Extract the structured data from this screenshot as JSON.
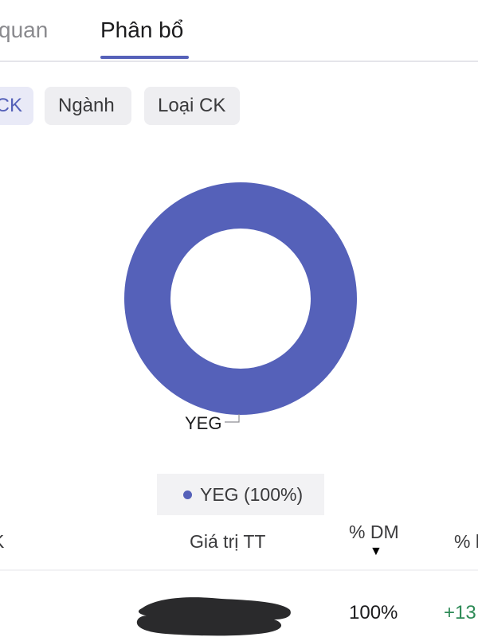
{
  "tabs": [
    {
      "label": "quan"
    },
    {
      "label": "Phân bổ",
      "active": true
    }
  ],
  "filters": [
    {
      "label": "CK",
      "selected": true
    },
    {
      "label": "Ngành"
    },
    {
      "label": "Loại CK"
    }
  ],
  "chart_data": {
    "type": "pie",
    "style": "donut",
    "categories": [
      "YEG"
    ],
    "values": [
      100
    ],
    "slice_labels": [
      "YEG"
    ],
    "legend": [
      {
        "label": "YEG (100%)"
      }
    ],
    "legend_position": "bottom",
    "colors": [
      "#5561b9"
    ]
  },
  "table": {
    "columns": [
      "K",
      "Giá trị TT",
      "% DM",
      "% l"
    ],
    "sort_column": "% DM",
    "sort_icon": "sort-desc-icon",
    "rows": [
      {
        "weight": "100%",
        "change": "+13"
      }
    ]
  },
  "colors": {
    "accent": "#5561b9",
    "positive": "#2e8b57",
    "chip_bg": "#eeeef1"
  }
}
